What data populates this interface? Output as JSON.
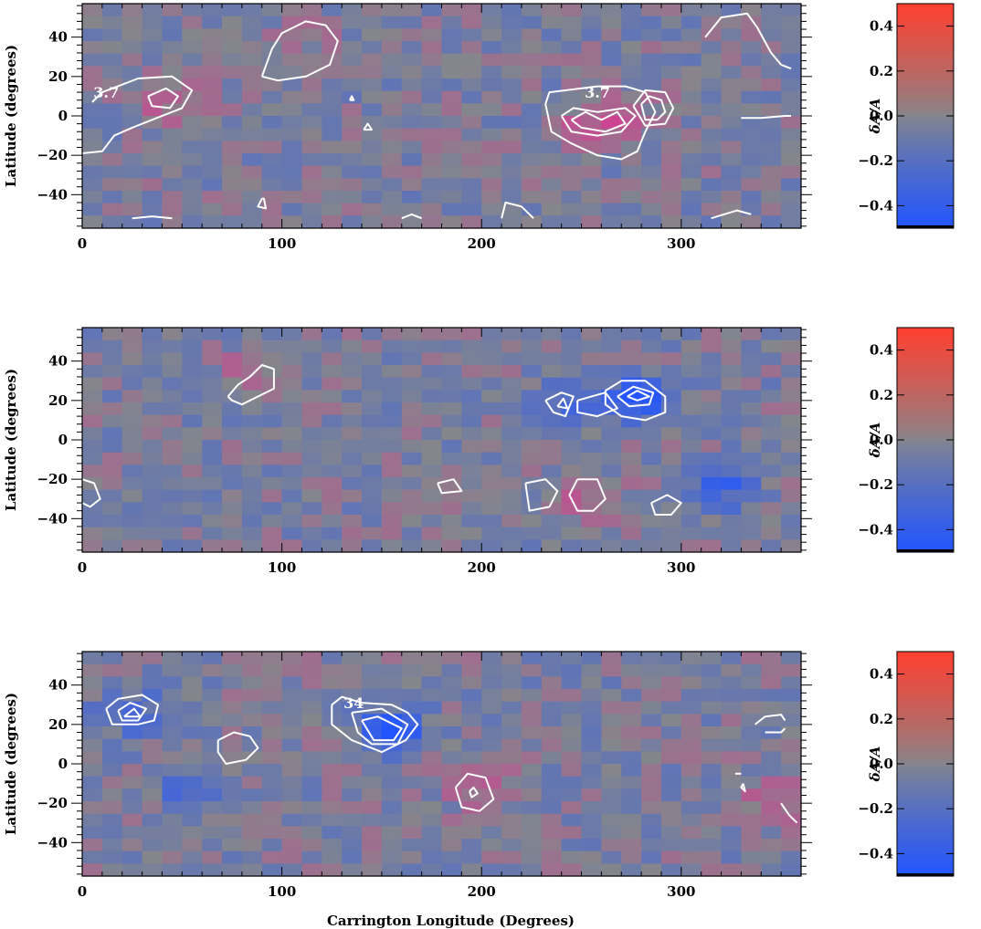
{
  "chart_data": [
    {
      "type": "heatmap",
      "title": "",
      "xlabel": "",
      "ylabel": "Latitude (degrees)",
      "xlim": [
        0,
        360
      ],
      "ylim": [
        -57,
        57
      ],
      "xticks": [
        "0",
        "100",
        "200",
        "300"
      ],
      "yticks": [
        "40",
        "20",
        "0",
        "-20",
        "-40"
      ],
      "colorbar": {
        "label": "δA/A",
        "range": [
          -0.5,
          0.5
        ],
        "ticks": [
          "0.4",
          "0.2",
          "0.0",
          "-0.2",
          "-0.4"
        ]
      },
      "contour_labels": [
        {
          "text": "3.7",
          "x": 12,
          "y": 12
        },
        {
          "text": "3.7",
          "x": 258,
          "y": 12
        }
      ],
      "features": [
        {
          "lon": 42,
          "lat": 8,
          "value": 0.22
        },
        {
          "lon": 258,
          "lat": -4,
          "value": 0.28
        },
        {
          "lon": 282,
          "lat": 4,
          "value": 0.05
        },
        {
          "lon": 110,
          "lat": 40,
          "value": 0.05
        }
      ],
      "contours": [
        [
          [
            5,
            7
          ],
          [
            10,
            12
          ],
          [
            28,
            19
          ],
          [
            45,
            20
          ],
          [
            55,
            13
          ],
          [
            50,
            4
          ],
          [
            35,
            -2
          ],
          [
            25,
            -6
          ],
          [
            16,
            -10
          ],
          [
            10,
            -18
          ],
          [
            0,
            -19
          ]
        ],
        [
          [
            33,
            10
          ],
          [
            42,
            14
          ],
          [
            48,
            10
          ],
          [
            44,
            4
          ],
          [
            35,
            5
          ],
          [
            33,
            10
          ]
        ],
        [
          [
            90,
            20
          ],
          [
            95,
            34
          ],
          [
            100,
            42
          ],
          [
            112,
            48
          ],
          [
            122,
            46
          ],
          [
            128,
            38
          ],
          [
            124,
            26
          ],
          [
            112,
            20
          ],
          [
            98,
            18
          ],
          [
            90,
            20
          ]
        ],
        [
          [
            134,
            8
          ],
          [
            135,
            10
          ],
          [
            136,
            8
          ],
          [
            134,
            8
          ]
        ],
        [
          [
            141,
            -7
          ],
          [
            143,
            -4
          ],
          [
            145,
            -7
          ],
          [
            141,
            -7
          ]
        ],
        [
          [
            90,
            -42
          ],
          [
            88,
            -46
          ],
          [
            92,
            -47
          ],
          [
            91,
            -42
          ],
          [
            90,
            -42
          ]
        ],
        [
          [
            232,
            6
          ],
          [
            234,
            12
          ],
          [
            258,
            15
          ],
          [
            272,
            15
          ],
          [
            282,
            12
          ],
          [
            287,
            2
          ],
          [
            282,
            -8
          ],
          [
            278,
            -18
          ],
          [
            270,
            -22
          ],
          [
            258,
            -20
          ],
          [
            245,
            -14
          ],
          [
            235,
            -8
          ],
          [
            232,
            6
          ]
        ],
        [
          [
            240,
            0
          ],
          [
            246,
            4
          ],
          [
            258,
            2
          ],
          [
            272,
            4
          ],
          [
            277,
            0
          ],
          [
            270,
            -8
          ],
          [
            258,
            -10
          ],
          [
            245,
            -8
          ],
          [
            240,
            0
          ]
        ],
        [
          [
            245,
            -2
          ],
          [
            252,
            2
          ],
          [
            260,
            -2
          ],
          [
            268,
            2
          ],
          [
            272,
            -4
          ],
          [
            262,
            -8
          ],
          [
            250,
            -6
          ],
          [
            245,
            -2
          ]
        ],
        [
          [
            280,
            6
          ],
          [
            284,
            10
          ],
          [
            290,
            8
          ],
          [
            292,
            2
          ],
          [
            288,
            -2
          ],
          [
            282,
            -2
          ],
          [
            280,
            6
          ]
        ],
        [
          [
            276,
            5
          ],
          [
            282,
            13
          ],
          [
            292,
            12
          ],
          [
            296,
            4
          ],
          [
            292,
            -4
          ],
          [
            282,
            -5
          ],
          [
            276,
            5
          ]
        ],
        [
          [
            312,
            40
          ],
          [
            320,
            50
          ],
          [
            333,
            52
          ],
          [
            338,
            45
          ],
          [
            345,
            32
          ],
          [
            350,
            26
          ],
          [
            355,
            24
          ]
        ],
        [
          [
            330,
            -1
          ],
          [
            340,
            -1
          ],
          [
            352,
            0
          ],
          [
            355,
            0
          ]
        ],
        [
          [
            315,
            -52
          ],
          [
            328,
            -48
          ],
          [
            335,
            -50
          ]
        ],
        [
          [
            210,
            -52
          ],
          [
            212,
            -44
          ],
          [
            220,
            -46
          ],
          [
            226,
            -52
          ]
        ],
        [
          [
            160,
            -52
          ],
          [
            165,
            -50
          ],
          [
            170,
            -52
          ]
        ],
        [
          [
            25,
            -52
          ],
          [
            35,
            -51
          ],
          [
            45,
            -52
          ]
        ]
      ]
    },
    {
      "type": "heatmap",
      "title": "",
      "xlabel": "",
      "ylabel": "Latitude (degrees)",
      "xlim": [
        0,
        360
      ],
      "ylim": [
        -57,
        57
      ],
      "xticks": [
        "0",
        "100",
        "200",
        "300"
      ],
      "yticks": [
        "40",
        "20",
        "0",
        "-20",
        "-40"
      ],
      "colorbar": {
        "label": "δA/A",
        "range": [
          -0.5,
          0.5
        ],
        "ticks": [
          "0.4",
          "0.2",
          "0.0",
          "-0.2",
          "-0.4"
        ]
      },
      "contour_labels": [],
      "features": [
        {
          "lon": 278,
          "lat": 22,
          "value": -0.4
        },
        {
          "lon": 240,
          "lat": 16,
          "value": -0.25
        },
        {
          "lon": 85,
          "lat": 32,
          "value": 0.18
        },
        {
          "lon": 320,
          "lat": -25,
          "value": -0.3
        },
        {
          "lon": 255,
          "lat": -30,
          "value": 0.2
        }
      ],
      "contours": [
        [
          [
            262,
            25
          ],
          [
            270,
            30
          ],
          [
            282,
            30
          ],
          [
            292,
            22
          ],
          [
            292,
            14
          ],
          [
            282,
            10
          ],
          [
            270,
            12
          ],
          [
            262,
            18
          ],
          [
            262,
            25
          ]
        ],
        [
          [
            268,
            22
          ],
          [
            276,
            27
          ],
          [
            286,
            24
          ],
          [
            284,
            18
          ],
          [
            274,
            17
          ],
          [
            268,
            22
          ]
        ],
        [
          [
            273,
            22
          ],
          [
            278,
            25
          ],
          [
            284,
            22
          ],
          [
            278,
            20
          ],
          [
            273,
            22
          ]
        ],
        [
          [
            232,
            20
          ],
          [
            240,
            24
          ],
          [
            246,
            22
          ],
          [
            242,
            12
          ],
          [
            236,
            14
          ],
          [
            232,
            20
          ]
        ],
        [
          [
            238,
            17
          ],
          [
            241,
            21
          ],
          [
            243,
            16
          ],
          [
            238,
            17
          ]
        ],
        [
          [
            248,
            20
          ],
          [
            262,
            24
          ],
          [
            268,
            16
          ],
          [
            258,
            12
          ],
          [
            248,
            14
          ],
          [
            248,
            20
          ]
        ],
        [
          [
            73,
            22
          ],
          [
            78,
            28
          ],
          [
            84,
            32
          ],
          [
            90,
            38
          ],
          [
            96,
            36
          ],
          [
            96,
            26
          ],
          [
            88,
            22
          ],
          [
            80,
            18
          ],
          [
            75,
            20
          ],
          [
            73,
            22
          ]
        ],
        [
          [
            178,
            -22
          ],
          [
            186,
            -20
          ],
          [
            190,
            -26
          ],
          [
            180,
            -27
          ],
          [
            178,
            -22
          ]
        ],
        [
          [
            222,
            -22
          ],
          [
            232,
            -20
          ],
          [
            238,
            -26
          ],
          [
            234,
            -34
          ],
          [
            224,
            -36
          ],
          [
            222,
            -22
          ]
        ],
        [
          [
            248,
            -20
          ],
          [
            258,
            -20
          ],
          [
            262,
            -30
          ],
          [
            256,
            -36
          ],
          [
            248,
            -36
          ],
          [
            244,
            -28
          ],
          [
            248,
            -20
          ]
        ],
        [
          [
            285,
            -32
          ],
          [
            293,
            -28
          ],
          [
            300,
            -32
          ],
          [
            295,
            -38
          ],
          [
            287,
            -38
          ],
          [
            285,
            -32
          ]
        ],
        [
          [
            0,
            -20
          ],
          [
            6,
            -22
          ],
          [
            9,
            -30
          ],
          [
            4,
            -34
          ],
          [
            0,
            -32
          ]
        ]
      ]
    },
    {
      "type": "heatmap",
      "title": "",
      "xlabel": "Carrington Longitude (Degrees)",
      "ylabel": "Latitude (degrees)",
      "xlim": [
        0,
        360
      ],
      "ylim": [
        -57,
        57
      ],
      "xticks": [
        "0",
        "100",
        "200",
        "300"
      ],
      "yticks": [
        "40",
        "20",
        "0",
        "-20",
        "-40"
      ],
      "colorbar": {
        "label": "δA/A",
        "range": [
          -0.5,
          0.5
        ],
        "ticks": [
          "0.4",
          "0.2",
          "0.0",
          "-0.2",
          "-0.4"
        ]
      },
      "contour_labels": [
        {
          "text": "34",
          "x": 136,
          "y": 31
        }
      ],
      "features": [
        {
          "lon": 155,
          "lat": 17,
          "value": -0.4
        },
        {
          "lon": 25,
          "lat": 25,
          "value": -0.25
        },
        {
          "lon": 55,
          "lat": -12,
          "value": -0.22
        },
        {
          "lon": 200,
          "lat": -10,
          "value": 0.2
        },
        {
          "lon": 345,
          "lat": -20,
          "value": 0.2
        }
      ],
      "contours": [
        [
          [
            12,
            28
          ],
          [
            18,
            33
          ],
          [
            30,
            35
          ],
          [
            38,
            30
          ],
          [
            36,
            22
          ],
          [
            28,
            20
          ],
          [
            15,
            20
          ],
          [
            12,
            28
          ]
        ],
        [
          [
            18,
            27
          ],
          [
            24,
            31
          ],
          [
            32,
            28
          ],
          [
            28,
            22
          ],
          [
            20,
            22
          ],
          [
            18,
            27
          ]
        ],
        [
          [
            21,
            24
          ],
          [
            26,
            28
          ],
          [
            29,
            24
          ],
          [
            21,
            24
          ]
        ],
        [
          [
            125,
            30
          ],
          [
            130,
            34
          ],
          [
            140,
            31
          ],
          [
            155,
            30
          ],
          [
            163,
            26
          ],
          [
            168,
            20
          ],
          [
            162,
            12
          ],
          [
            150,
            6
          ],
          [
            135,
            12
          ],
          [
            125,
            20
          ],
          [
            125,
            30
          ]
        ],
        [
          [
            135,
            26
          ],
          [
            150,
            28
          ],
          [
            163,
            20
          ],
          [
            158,
            10
          ],
          [
            145,
            10
          ],
          [
            138,
            16
          ],
          [
            135,
            26
          ]
        ],
        [
          [
            140,
            22
          ],
          [
            148,
            24
          ],
          [
            160,
            18
          ],
          [
            156,
            12
          ],
          [
            146,
            12
          ],
          [
            140,
            22
          ]
        ],
        [
          [
            68,
            12
          ],
          [
            76,
            16
          ],
          [
            84,
            14
          ],
          [
            88,
            8
          ],
          [
            82,
            2
          ],
          [
            72,
            0
          ],
          [
            68,
            6
          ],
          [
            68,
            12
          ]
        ],
        [
          [
            187,
            -12
          ],
          [
            193,
            -5
          ],
          [
            202,
            -7
          ],
          [
            206,
            -18
          ],
          [
            199,
            -24
          ],
          [
            190,
            -22
          ],
          [
            187,
            -12
          ]
        ],
        [
          [
            194,
            -14
          ],
          [
            196,
            -12
          ],
          [
            198,
            -15
          ],
          [
            195,
            -17
          ],
          [
            194,
            -14
          ]
        ],
        [
          [
            337,
            20
          ],
          [
            342,
            24
          ],
          [
            350,
            25
          ],
          [
            352,
            22
          ]
        ],
        [
          [
            342,
            16
          ],
          [
            350,
            16
          ],
          [
            352,
            18
          ]
        ],
        [
          [
            327,
            -5
          ],
          [
            330,
            -5
          ]
        ],
        [
          [
            331,
            -10
          ],
          [
            332,
            -14
          ],
          [
            330,
            -12
          ],
          [
            331,
            -10
          ]
        ],
        [
          [
            350,
            -20
          ],
          [
            354,
            -26
          ],
          [
            358,
            -30
          ]
        ]
      ]
    }
  ]
}
